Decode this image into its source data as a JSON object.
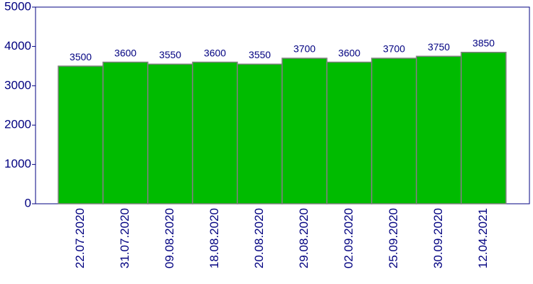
{
  "chart_data": {
    "type": "bar",
    "categories": [
      "22.07.2020",
      "31.07.2020",
      "09.08.2020",
      "18.08.2020",
      "20.08.2020",
      "29.08.2020",
      "02.09.2020",
      "25.09.2020",
      "30.09.2020",
      "12.04.2021"
    ],
    "values": [
      3500,
      3600,
      3550,
      3600,
      3550,
      3700,
      3600,
      3700,
      3750,
      3850
    ],
    "color": "#00bb00",
    "ylim": [
      0,
      5000
    ],
    "yticks": [
      0,
      1000,
      2000,
      3000,
      4000,
      5000
    ],
    "grid": false
  }
}
